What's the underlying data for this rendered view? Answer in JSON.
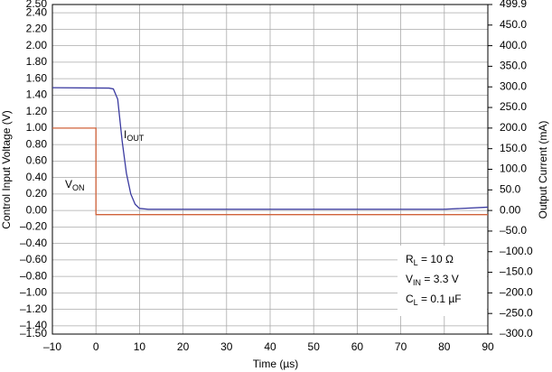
{
  "chart_data": {
    "type": "line",
    "x_label": "Time (µs)",
    "y_label": "Control Input Voltage (V)",
    "y2_label": "Output Current (mA)",
    "xlim": [
      -10,
      90
    ],
    "xticks": [
      {
        "value": -10,
        "label": "–10"
      },
      0,
      10,
      20,
      30,
      40,
      50,
      60,
      70,
      80,
      90
    ],
    "ylim": [
      -1.5,
      2.5
    ],
    "yticks": [
      {
        "value": 2.5,
        "label": "2.50"
      },
      {
        "value": 2.4,
        "label": "2.40"
      },
      {
        "value": 2.2,
        "label": "2.20"
      },
      {
        "value": 2.0,
        "label": "2.00"
      },
      {
        "value": 1.8,
        "label": "1.80"
      },
      {
        "value": 1.6,
        "label": "1.60"
      },
      {
        "value": 1.4,
        "label": "1.40"
      },
      {
        "value": 1.2,
        "label": "1.20"
      },
      {
        "value": 1.0,
        "label": "1.00"
      },
      {
        "value": 0.8,
        "label": "0.80"
      },
      {
        "value": 0.6,
        "label": "0.60"
      },
      {
        "value": 0.4,
        "label": "0.40"
      },
      {
        "value": 0.2,
        "label": "0.20"
      },
      {
        "value": 0,
        "label": "0.00"
      },
      {
        "value": -0.2,
        "label": "–0.20"
      },
      {
        "value": -0.4,
        "label": "–0.40"
      },
      {
        "value": -0.6,
        "label": "–0.60"
      },
      {
        "value": -0.8,
        "label": "–0.80"
      },
      {
        "value": -1.0,
        "label": "–1.00"
      },
      {
        "value": -1.2,
        "label": "–1.20"
      },
      {
        "value": -1.4,
        "label": "–1.40"
      },
      {
        "value": -1.5,
        "label": "–1.50"
      }
    ],
    "y2lim": [
      -300,
      499.9
    ],
    "y2ticks": [
      499.9,
      {
        "value": 450,
        "label": "450.0"
      },
      {
        "value": 400,
        "label": "400.0"
      },
      {
        "value": 350,
        "label": "350.0"
      },
      {
        "value": 300,
        "label": "300.0"
      },
      {
        "value": 250,
        "label": "250.0"
      },
      {
        "value": 200,
        "label": "200.0"
      },
      {
        "value": 150,
        "label": "150.0"
      },
      {
        "value": 100,
        "label": "100.0"
      },
      {
        "value": 50,
        "label": "50.0"
      },
      {
        "value": 0,
        "label": "0.00"
      },
      {
        "value": -50,
        "label": "–50.0"
      },
      {
        "value": -100,
        "label": "–100.0"
      },
      {
        "value": -150,
        "label": "–150.0"
      },
      {
        "value": -200,
        "label": "–200.0"
      },
      {
        "value": -250,
        "label": "–250.0"
      },
      {
        "value": -300,
        "label": "–300.0"
      }
    ],
    "grid": true,
    "series": [
      {
        "name": "I_OUT",
        "color": "#3a3aa0",
        "axis": "y2",
        "x": [
          -10,
          3,
          4,
          5,
          6,
          7,
          8,
          9,
          10,
          12,
          80,
          90
        ],
        "values": [
          298,
          297,
          295,
          270,
          170,
          90,
          40,
          15,
          5,
          3,
          3,
          8
        ]
      },
      {
        "name": "V_ON",
        "color": "#d0623a",
        "axis": "y",
        "x": [
          -10,
          0,
          0,
          90
        ],
        "values": [
          1.0,
          1.0,
          -0.05,
          -0.05
        ]
      }
    ],
    "annotations": [
      {
        "main": "I",
        "sub": "OUT",
        "rest": ""
      },
      {
        "main": "V",
        "sub": "ON",
        "rest": ""
      },
      {
        "main": "R",
        "sub": "L",
        "rest": " = 10 Ω"
      },
      {
        "main": "V",
        "sub": "IN",
        "rest": " = 3.3 V"
      },
      {
        "main": "C",
        "sub": "L",
        "rest": " = 0.1 µF"
      }
    ]
  }
}
